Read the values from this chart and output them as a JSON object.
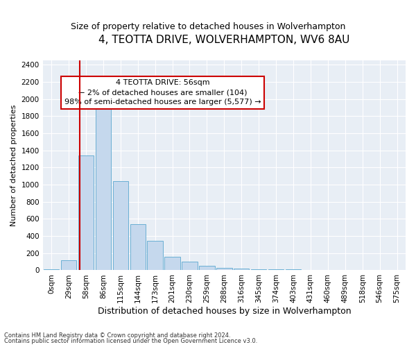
{
  "title": "4, TEOTTA DRIVE, WOLVERHAMPTON, WV6 8AU",
  "subtitle": "Size of property relative to detached houses in Wolverhampton",
  "xlabel": "Distribution of detached houses by size in Wolverhampton",
  "ylabel": "Number of detached properties",
  "categories": [
    "0sqm",
    "29sqm",
    "58sqm",
    "86sqm",
    "115sqm",
    "144sqm",
    "173sqm",
    "201sqm",
    "230sqm",
    "259sqm",
    "288sqm",
    "316sqm",
    "345sqm",
    "374sqm",
    "403sqm",
    "431sqm",
    "460sqm",
    "489sqm",
    "518sqm",
    "546sqm",
    "575sqm"
  ],
  "values": [
    10,
    120,
    1340,
    1880,
    1040,
    540,
    340,
    155,
    100,
    50,
    30,
    20,
    15,
    10,
    8,
    3,
    1,
    1,
    0,
    0,
    1
  ],
  "bar_color": "#c5d8ed",
  "bar_edge_color": "#6aafd4",
  "annotation_line1": "4 TEOTTA DRIVE: 56sqm",
  "annotation_line2": "← 2% of detached houses are smaller (104)",
  "annotation_line3": "98% of semi-detached houses are larger (5,577) →",
  "annotation_box_color": "#ffffff",
  "annotation_box_edge_color": "#cc0000",
  "vline_x": 1.65,
  "vline_color": "#cc0000",
  "footer_line1": "Contains HM Land Registry data © Crown copyright and database right 2024.",
  "footer_line2": "Contains public sector information licensed under the Open Government Licence v3.0.",
  "ylim": [
    0,
    2450
  ],
  "plot_bg_color": "#e8eef5",
  "title_fontsize": 11,
  "subtitle_fontsize": 9,
  "tick_fontsize": 7.5,
  "ylabel_fontsize": 8,
  "xlabel_fontsize": 9,
  "annotation_fontsize": 8
}
